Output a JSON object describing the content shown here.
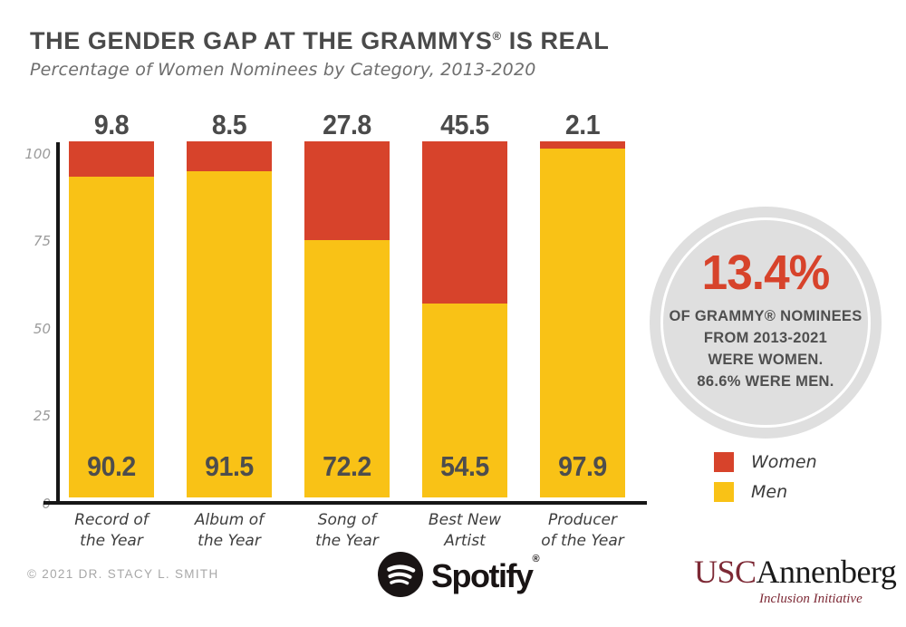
{
  "header": {
    "title_main": "THE GENDER GAP AT THE GRAMMYS",
    "title_reg": "®",
    "title_suffix": " IS REAL",
    "subtitle": "Percentage of Women Nominees by Category, 2013-2020"
  },
  "chart_data": {
    "type": "bar",
    "stacked": true,
    "title": "THE GENDER GAP AT THE GRAMMYS® IS REAL",
    "subtitle": "Percentage of Women Nominees by Category, 2013-2020",
    "categories": [
      "Record of the Year",
      "Album of the Year",
      "Song of the Year",
      "Best New Artist",
      "Producer of the Year"
    ],
    "series": [
      {
        "name": "Women",
        "color": "#d7432b",
        "values": [
          9.8,
          8.5,
          27.8,
          45.5,
          2.1
        ]
      },
      {
        "name": "Men",
        "color": "#f9c216",
        "values": [
          90.2,
          91.5,
          72.2,
          54.5,
          97.9
        ]
      }
    ],
    "xlabel": "",
    "ylabel": "",
    "ylim": [
      0,
      100
    ],
    "yticks": [
      0,
      25,
      50,
      75,
      100
    ],
    "grid": false,
    "legend_position": "right"
  },
  "axis": {
    "ticks": [
      "100",
      "75",
      "50",
      "25",
      "0"
    ]
  },
  "bars": [
    {
      "top_label": "9.8",
      "men_label": "90.2",
      "cat_line1": "Record of",
      "cat_line2": "the Year"
    },
    {
      "top_label": "8.5",
      "men_label": "91.5",
      "cat_line1": "Album of",
      "cat_line2": "the Year"
    },
    {
      "top_label": "27.8",
      "men_label": "72.2",
      "cat_line1": "Song of",
      "cat_line2": "the Year"
    },
    {
      "top_label": "45.5",
      "men_label": "54.5",
      "cat_line1": "Best New",
      "cat_line2": "Artist"
    },
    {
      "top_label": "2.1",
      "men_label": "97.9",
      "cat_line1": "Producer",
      "cat_line2": "of the Year"
    }
  ],
  "callout": {
    "big": "13.4%",
    "lines": [
      "OF GRAMMY® NOMINEES",
      "FROM 2013-2021",
      "WERE WOMEN.",
      "86.6% WERE MEN."
    ]
  },
  "legend": {
    "items": [
      {
        "label": "Women",
        "color": "#d7432b"
      },
      {
        "label": "Men",
        "color": "#f9c216"
      }
    ]
  },
  "footer": {
    "copyright": "© 2021 DR. STACY L. SMITH",
    "spotify_wordmark": "Spotify",
    "spotify_reg": "®",
    "usc": "USC",
    "annenberg": "Annenberg",
    "inclusion": "Inclusion Initiative"
  },
  "colors": {
    "women_red": "#d7432b",
    "men_yellow": "#f9c216",
    "title_gray": "#4a4a4a",
    "circle_gray": "#dfdfdf",
    "usc_maroon": "#7d2935"
  }
}
